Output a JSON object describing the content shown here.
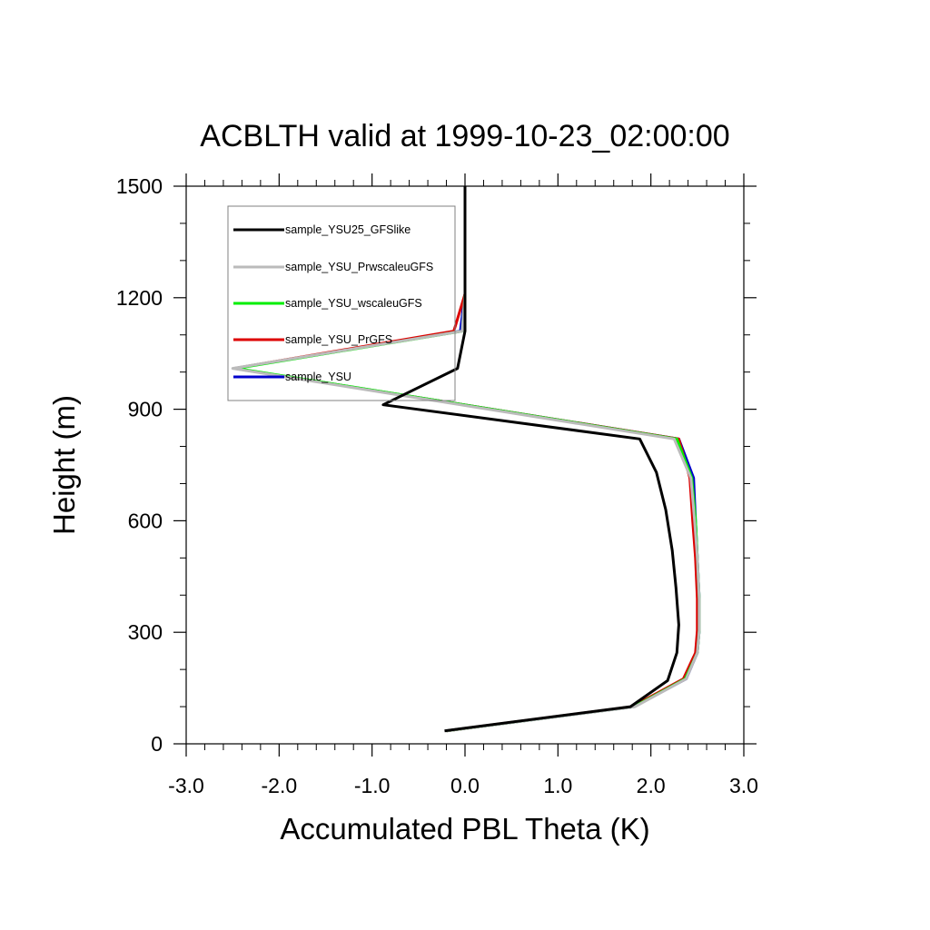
{
  "chart_data": {
    "type": "line",
    "title": "ACBLTH valid at 1999-10-23_02:00:00",
    "xlabel": "Accumulated PBL Theta (K)",
    "ylabel": "Height (m)",
    "xlim": [
      -3.0,
      3.0
    ],
    "ylim": [
      0,
      1500
    ],
    "xticks": [
      -3.0,
      -2.0,
      -1.0,
      0.0,
      1.0,
      2.0,
      3.0
    ],
    "xtick_labels": [
      "-3.0",
      "-2.0",
      "-1.0",
      "0.0",
      "1.0",
      "2.0",
      "3.0"
    ],
    "yticks": [
      0,
      300,
      600,
      900,
      1200,
      1500
    ],
    "ytick_labels": [
      "0",
      "300",
      "600",
      "900",
      "1200",
      "1500"
    ],
    "legend_position": "top-left",
    "series": [
      {
        "name": "sample_YSU",
        "color": "#0000cc",
        "points": [
          [
            -0.2,
            35
          ],
          [
            1.82,
            100
          ],
          [
            2.38,
            175
          ],
          [
            2.5,
            245
          ],
          [
            2.52,
            305
          ],
          [
            2.52,
            390
          ],
          [
            2.5,
            500
          ],
          [
            2.48,
            600
          ],
          [
            2.46,
            715
          ],
          [
            2.3,
            820
          ],
          [
            -2.48,
            1010
          ],
          [
            -0.05,
            1110
          ],
          [
            0.0,
            1210
          ]
        ]
      },
      {
        "name": "sample_YSU_PrGFS",
        "color": "#dd0000",
        "points": [
          [
            -0.2,
            35
          ],
          [
            1.8,
            100
          ],
          [
            2.35,
            175
          ],
          [
            2.48,
            245
          ],
          [
            2.5,
            305
          ],
          [
            2.5,
            390
          ],
          [
            2.48,
            500
          ],
          [
            2.45,
            600
          ],
          [
            2.42,
            715
          ],
          [
            2.3,
            820
          ],
          [
            -2.48,
            1010
          ],
          [
            -0.12,
            1110
          ],
          [
            0.0,
            1210
          ]
        ]
      },
      {
        "name": "sample_YSU_wscaleuGFS",
        "color": "#00ee00",
        "points": [
          [
            -0.2,
            35
          ],
          [
            1.82,
            100
          ],
          [
            2.37,
            175
          ],
          [
            2.5,
            245
          ],
          [
            2.52,
            305
          ],
          [
            2.52,
            390
          ],
          [
            2.5,
            500
          ],
          [
            2.48,
            600
          ],
          [
            2.44,
            715
          ],
          [
            2.28,
            820
          ],
          [
            -2.46,
            1010
          ],
          [
            -0.03,
            1110
          ],
          [
            0.0,
            1210
          ]
        ]
      },
      {
        "name": "sample_YSU_PrwscaleuGFS",
        "color": "#bbbbbb",
        "points": [
          [
            -0.2,
            35
          ],
          [
            1.83,
            100
          ],
          [
            2.38,
            175
          ],
          [
            2.5,
            245
          ],
          [
            2.52,
            305
          ],
          [
            2.52,
            390
          ],
          [
            2.5,
            500
          ],
          [
            2.47,
            600
          ],
          [
            2.43,
            715
          ],
          [
            2.25,
            820
          ],
          [
            -2.5,
            1010
          ],
          [
            -0.03,
            1110
          ],
          [
            0.0,
            1210
          ]
        ]
      },
      {
        "name": "sample_YSU25_GFSlike",
        "color": "#000000",
        "points": [
          [
            -0.22,
            35
          ],
          [
            1.78,
            100
          ],
          [
            2.18,
            170
          ],
          [
            2.28,
            245
          ],
          [
            2.3,
            320
          ],
          [
            2.27,
            420
          ],
          [
            2.23,
            520
          ],
          [
            2.16,
            630
          ],
          [
            2.06,
            730
          ],
          [
            1.88,
            820
          ],
          [
            -0.88,
            912
          ],
          [
            -0.08,
            1010
          ],
          [
            0.0,
            1110
          ],
          [
            0.0,
            1500
          ]
        ]
      }
    ],
    "legend_order": [
      "sample_YSU25_GFSlike",
      "sample_YSU_PrwscaleuGFS",
      "sample_YSU_wscaleuGFS",
      "sample_YSU_PrGFS",
      "sample_YSU"
    ]
  }
}
